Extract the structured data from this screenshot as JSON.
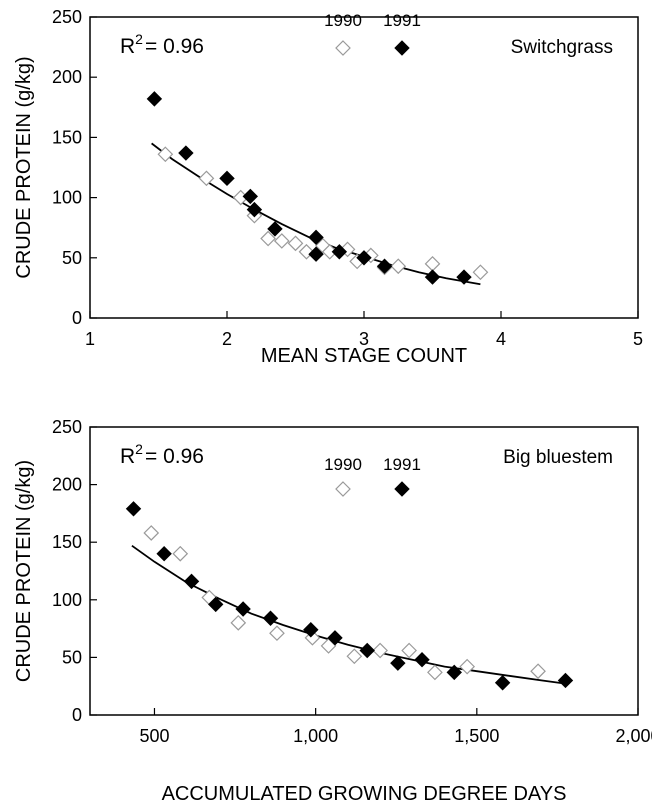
{
  "chart_data": [
    {
      "type": "scatter",
      "panel": "top",
      "xlabel": "MEAN STAGE COUNT",
      "ylabel": "CRUDE PROTEIN (g/kg)",
      "xlim": [
        1,
        5
      ],
      "ylim": [
        0,
        250
      ],
      "x_ticks": [
        1,
        2,
        3,
        4,
        5
      ],
      "x_tick_labels": [
        "1",
        "2",
        "3",
        "4",
        "5"
      ],
      "y_ticks": [
        0,
        50,
        100,
        150,
        200,
        250
      ],
      "y_tick_labels": [
        "0",
        "50",
        "100",
        "150",
        "200",
        "250"
      ],
      "grid": false,
      "annotations": {
        "r2_prefix": "R",
        "r2_sup": "2",
        "r2_value": "= 0.96",
        "species": "Switchgrass"
      },
      "legend": {
        "position": "top-center",
        "labels": [
          "1990",
          "1991"
        ]
      },
      "series": [
        {
          "name": "1990",
          "marker": "open-diamond",
          "points": [
            [
              1.55,
              136
            ],
            [
              1.85,
              116
            ],
            [
              2.1,
              100
            ],
            [
              2.2,
              85
            ],
            [
              2.3,
              66
            ],
            [
              2.4,
              64
            ],
            [
              2.5,
              62
            ],
            [
              2.58,
              55
            ],
            [
              2.7,
              60
            ],
            [
              2.75,
              55
            ],
            [
              2.88,
              57
            ],
            [
              2.95,
              47
            ],
            [
              3.05,
              52
            ],
            [
              3.15,
              42
            ],
            [
              3.25,
              43
            ],
            [
              3.5,
              45
            ],
            [
              3.85,
              38
            ]
          ]
        },
        {
          "name": "1991",
          "marker": "filled-diamond",
          "points": [
            [
              1.47,
              182
            ],
            [
              1.7,
              137
            ],
            [
              2.0,
              116
            ],
            [
              2.17,
              101
            ],
            [
              2.2,
              90
            ],
            [
              2.35,
              74
            ],
            [
              2.65,
              67
            ],
            [
              2.65,
              53
            ],
            [
              2.82,
              55
            ],
            [
              3.0,
              50
            ],
            [
              3.15,
              43
            ],
            [
              3.5,
              34
            ],
            [
              3.73,
              34
            ]
          ]
        }
      ],
      "fit_curve": {
        "points": [
          [
            1.45,
            145
          ],
          [
            1.6,
            132
          ],
          [
            1.8,
            117
          ],
          [
            2.0,
            103
          ],
          [
            2.2,
            90
          ],
          [
            2.4,
            78
          ],
          [
            2.6,
            67
          ],
          [
            2.8,
            58
          ],
          [
            3.0,
            51
          ],
          [
            3.2,
            44
          ],
          [
            3.4,
            38
          ],
          [
            3.6,
            33
          ],
          [
            3.75,
            30
          ],
          [
            3.85,
            28
          ]
        ]
      }
    },
    {
      "type": "scatter",
      "panel": "bottom",
      "xlabel": "ACCUMULATED GROWING DEGREE DAYS",
      "ylabel": "CRUDE PROTEIN (g/kg)",
      "xlim": [
        300,
        2000
      ],
      "ylim": [
        0,
        250
      ],
      "x_ticks": [
        500,
        1000,
        1500,
        2000
      ],
      "x_tick_labels": [
        "500",
        "1,000",
        "1,500",
        "2,000"
      ],
      "y_ticks": [
        0,
        50,
        100,
        150,
        200,
        250
      ],
      "y_tick_labels": [
        "0",
        "50",
        "100",
        "150",
        "200",
        "250"
      ],
      "grid": false,
      "annotations": {
        "r2_prefix": "R",
        "r2_sup": "2",
        "r2_value": "= 0.96",
        "species": "Big bluestem"
      },
      "legend": {
        "position": "top-center",
        "labels": [
          "1990",
          "1991"
        ]
      },
      "series": [
        {
          "name": "1990",
          "marker": "open-diamond",
          "points": [
            [
              490,
              158
            ],
            [
              580,
              140
            ],
            [
              670,
              102
            ],
            [
              760,
              80
            ],
            [
              880,
              71
            ],
            [
              990,
              67
            ],
            [
              1040,
              60
            ],
            [
              1120,
              51
            ],
            [
              1200,
              56
            ],
            [
              1290,
              56
            ],
            [
              1370,
              37
            ],
            [
              1470,
              42
            ],
            [
              1690,
              38
            ]
          ]
        },
        {
          "name": "1991",
          "marker": "filled-diamond",
          "points": [
            [
              435,
              179
            ],
            [
              530,
              140
            ],
            [
              615,
              116
            ],
            [
              690,
              96
            ],
            [
              775,
              92
            ],
            [
              860,
              84
            ],
            [
              985,
              74
            ],
            [
              1060,
              67
            ],
            [
              1160,
              56
            ],
            [
              1255,
              45
            ],
            [
              1330,
              48
            ],
            [
              1430,
              37
            ],
            [
              1580,
              28
            ],
            [
              1775,
              30
            ]
          ]
        }
      ],
      "fit_curve": {
        "points": [
          [
            430,
            147
          ],
          [
            500,
            133
          ],
          [
            600,
            115
          ],
          [
            700,
            101
          ],
          [
            800,
            88
          ],
          [
            900,
            78
          ],
          [
            1000,
            69
          ],
          [
            1100,
            61
          ],
          [
            1200,
            54
          ],
          [
            1300,
            48
          ],
          [
            1400,
            42
          ],
          [
            1500,
            38
          ],
          [
            1600,
            34
          ],
          [
            1700,
            30
          ],
          [
            1780,
            27
          ]
        ]
      }
    }
  ]
}
